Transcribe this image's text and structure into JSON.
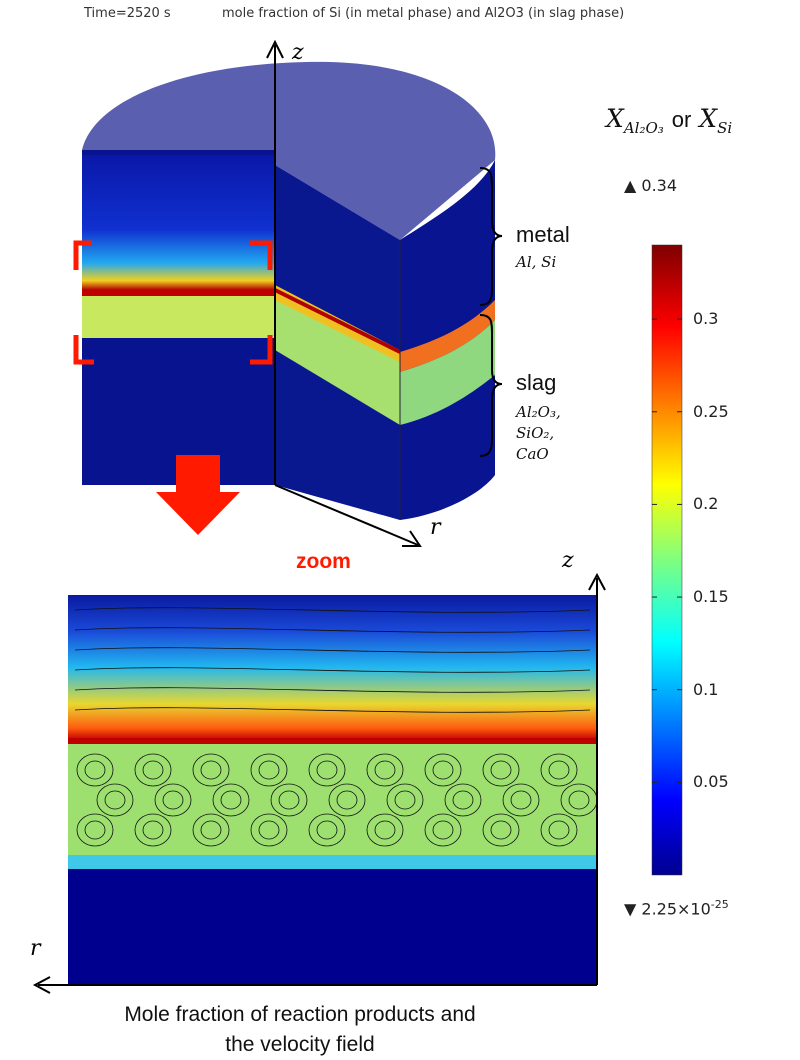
{
  "header": {
    "time": "Time=2520 s",
    "title": "mole fraction of Si (in metal phase) and Al2O3 (in slag phase)"
  },
  "axes": {
    "z": "z",
    "r": "r"
  },
  "layers": {
    "metal": {
      "label": "metal",
      "species": "Al, Si"
    },
    "slag": {
      "label": "slag",
      "species": [
        "Al₂O₃,",
        "SiO₂,",
        "CaO"
      ]
    }
  },
  "zoom_label": "zoom",
  "colorbar": {
    "title_main": "X",
    "title_sub1": "Al₂O₃",
    "title_or": "or",
    "title_sub2": "Si",
    "max_label": "▲ 0.34",
    "min_label_base": "▼ 2.25×10",
    "min_label_exp": "-25",
    "min": 0,
    "max": 0.34,
    "ticks": [
      "0.3",
      "0.25",
      "0.2",
      "0.15",
      "0.1",
      "0.05"
    ],
    "tick_values": [
      0.3,
      0.25,
      0.2,
      0.15,
      0.1,
      0.05
    ],
    "colormap": "jet"
  },
  "caption": [
    "Mole fraction of reaction products and",
    "the velocity field"
  ],
  "colors": {
    "accent_red": "#ff1a00",
    "low": "#00008f",
    "high": "#7f0000"
  }
}
